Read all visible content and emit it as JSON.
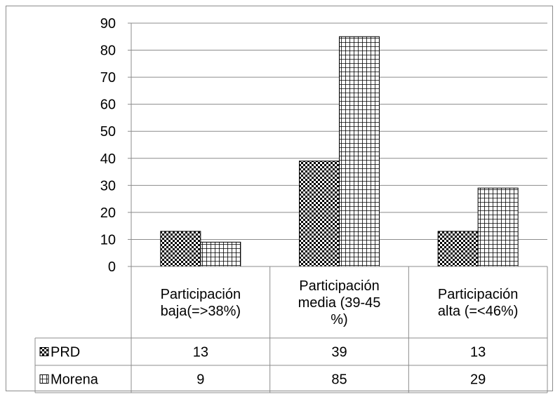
{
  "chart_data": {
    "type": "bar",
    "categories": [
      [
        "Participación",
        "baja(=>38%)"
      ],
      [
        "Participación",
        "media (39-45",
        "%)"
      ],
      [
        "Participación",
        "alta (=<46%)"
      ]
    ],
    "series": [
      {
        "name": "PRD",
        "values": [
          13,
          39,
          13
        ],
        "pattern": "checker",
        "color": "#000000"
      },
      {
        "name": "Morena",
        "values": [
          9,
          85,
          29
        ],
        "pattern": "grid",
        "color": "#000000"
      }
    ],
    "ylim": [
      0,
      90
    ],
    "yticks": [
      0,
      10,
      20,
      30,
      40,
      50,
      60,
      70,
      80,
      90
    ],
    "grid": true,
    "legend": "data-table"
  }
}
